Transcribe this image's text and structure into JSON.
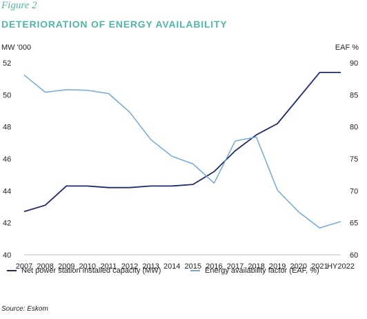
{
  "figure_label": "Figure 2",
  "title": "DETERIORATION OF ENERGY AVAILABILITY",
  "source": "Source: Eskom",
  "colors": {
    "heading": "#4fb5a6",
    "series1": "#1f2a6b",
    "series2": "#6fa8d9"
  },
  "chart_data": {
    "type": "line",
    "title": "DETERIORATION OF ENERGY AVAILABILITY",
    "x": [
      "2007",
      "2008",
      "2009",
      "2010",
      "2011",
      "2012",
      "2013",
      "2014",
      "2015",
      "2016",
      "2017",
      "2018",
      "2019",
      "2020",
      "2021",
      "HY2022"
    ],
    "y_left_label": "MW '000",
    "y_right_label": "EAF %",
    "ylim_left": [
      40,
      52
    ],
    "ylim_right": [
      60,
      90
    ],
    "y_left_ticks": [
      40,
      42,
      44,
      46,
      48,
      50,
      52
    ],
    "y_right_ticks": [
      60,
      65,
      70,
      75,
      80,
      85,
      90
    ],
    "grid": false,
    "legend_placement": "bottom",
    "series": [
      {
        "name": "Net power station installed capacity (MW)",
        "axis": "left",
        "color": "#1f2a6b",
        "values": [
          42.7,
          43.1,
          44.3,
          44.3,
          44.2,
          44.2,
          44.3,
          44.3,
          44.4,
          45.2,
          46.5,
          47.5,
          48.2,
          49.8,
          51.4,
          51.4
        ]
      },
      {
        "name": "Energy availability factor (EAF, %)",
        "axis": "right",
        "color": "#6fa8d9",
        "values": [
          88.1,
          85.4,
          85.8,
          85.7,
          85.2,
          82.3,
          78.0,
          75.4,
          74.2,
          71.2,
          77.8,
          78.4,
          70.1,
          66.7,
          64.2,
          65.2
        ]
      }
    ]
  }
}
